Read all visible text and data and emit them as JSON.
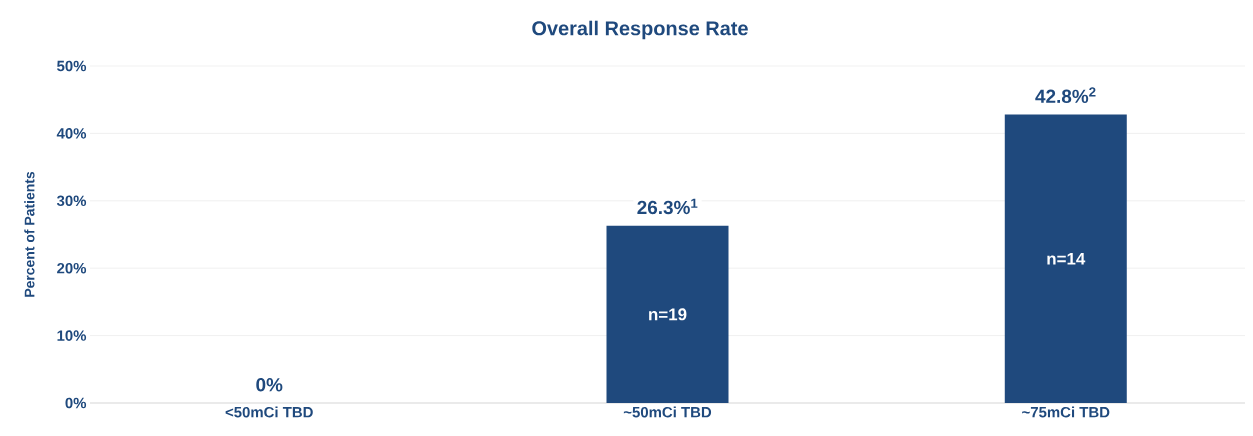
{
  "chart_data": {
    "type": "bar",
    "title": "Overall Response Rate",
    "ylabel": "Percent of Patients",
    "categories": [
      "<50mCi TBD",
      "~50mCi TBD",
      "~75mCi TBD"
    ],
    "values": [
      0,
      26.3,
      42.8
    ],
    "value_labels": [
      "0%",
      "26.3%$^{1}$",
      "42.8%$^{2}$"
    ],
    "color": "#1f497d",
    "ylim": [
      0,
      50
    ],
    "yticks": [
      {
        "value": 0,
        "label": "0%"
      },
      {
        "value": 10,
        "label": "10%"
      },
      {
        "value": 20,
        "label": "20%"
      },
      {
        "value": 30,
        "label": "30%"
      },
      {
        "value": 40,
        "label": "40%"
      },
      {
        "value": 50,
        "label": "50%"
      }
    ],
    "annotations": [
      "n=19",
      "n=14"
    ],
    "grid": "y"
  }
}
